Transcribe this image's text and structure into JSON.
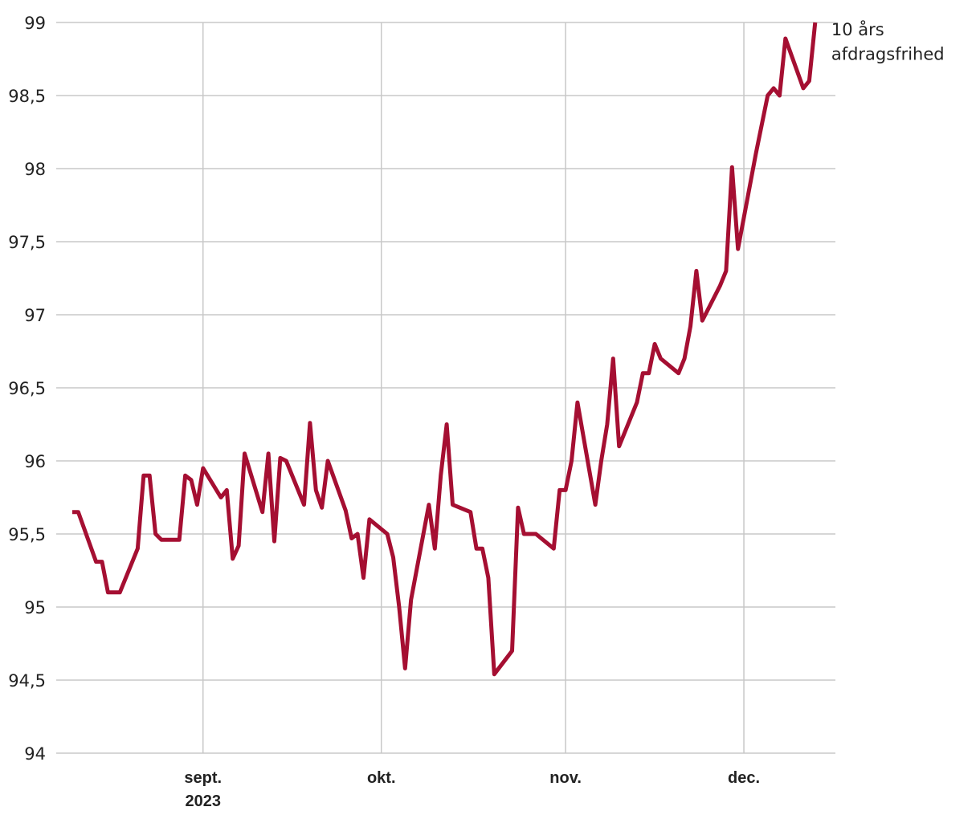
{
  "chart_data": {
    "type": "line",
    "x": [
      222,
      223,
      226,
      227,
      228,
      230,
      233,
      234,
      235,
      236,
      237,
      240,
      241,
      242,
      243,
      244,
      247,
      248,
      249,
      250,
      251,
      254,
      255,
      256,
      257,
      258,
      261,
      262,
      263,
      264,
      265,
      268,
      269,
      270,
      271,
      272,
      275,
      276,
      277,
      278,
      279,
      282,
      283,
      284,
      285,
      286,
      289,
      290,
      291,
      292,
      293,
      296,
      297,
      298,
      300,
      303,
      304,
      305,
      306,
      307,
      310,
      311,
      312,
      313,
      314,
      317,
      318,
      319,
      320,
      321,
      324,
      325,
      326,
      327,
      328,
      331,
      332,
      333,
      334,
      337,
      338,
      339,
      340,
      341,
      342,
      345,
      346,
      347
    ],
    "series": [
      {
        "name": "10 års\nafdragsfrihed",
        "color": "#a50f32",
        "values": [
          95.65,
          95.65,
          95.31,
          95.31,
          95.1,
          95.1,
          95.4,
          95.9,
          95.9,
          95.5,
          95.46,
          95.46,
          95.9,
          95.87,
          95.7,
          95.95,
          95.75,
          95.8,
          95.33,
          95.42,
          96.05,
          95.65,
          96.05,
          95.45,
          96.02,
          96.0,
          95.7,
          96.26,
          95.8,
          95.68,
          96.0,
          95.66,
          95.47,
          95.5,
          95.2,
          95.6,
          95.5,
          95.34,
          95.0,
          94.58,
          95.05,
          95.7,
          95.4,
          95.9,
          96.25,
          95.7,
          95.65,
          95.4,
          95.4,
          95.2,
          94.54,
          94.7,
          95.68,
          95.5,
          95.5,
          95.4,
          95.8,
          95.8,
          96.0,
          96.4,
          95.7,
          96.0,
          96.25,
          96.7,
          96.1,
          96.4,
          96.6,
          96.6,
          96.8,
          96.7,
          96.6,
          96.7,
          96.92,
          97.3,
          96.96,
          97.2,
          97.3,
          98.01,
          97.45,
          98.1,
          98.3,
          98.5,
          98.55,
          98.5,
          98.89,
          98.55,
          98.6,
          99.0
        ]
      }
    ],
    "xlim": [
      219.3,
      350.4
    ],
    "xticks": [
      {
        "value": 244,
        "label": "sept.\n2023"
      },
      {
        "value": 274,
        "label": "okt."
      },
      {
        "value": 305,
        "label": "nov."
      },
      {
        "value": 335,
        "label": "dec."
      }
    ],
    "ylim": [
      94,
      99
    ],
    "yticks": [
      94,
      {
        "value": 94.5,
        "label": "94,5"
      },
      95,
      {
        "value": 95.5,
        "label": "95,5"
      },
      96,
      {
        "value": 96.5,
        "label": "96,5"
      },
      97,
      {
        "value": 97.5,
        "label": "97,5"
      },
      98,
      {
        "value": 98.5,
        "label": "98,5"
      },
      99
    ],
    "grid": true
  }
}
